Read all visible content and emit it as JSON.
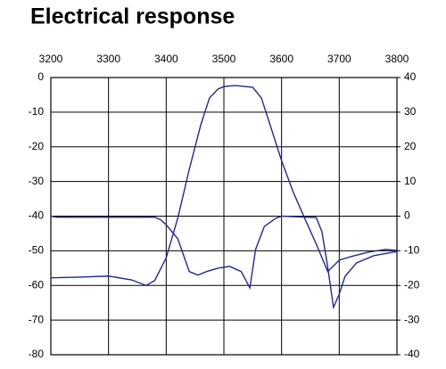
{
  "chart_data": {
    "type": "line",
    "title": "Electrical response",
    "xlim": [
      3200,
      3800
    ],
    "xticks": [
      3200,
      3300,
      3400,
      3500,
      3600,
      3700,
      3800
    ],
    "ylim": [
      -80,
      0
    ],
    "yticks": [
      0,
      -10,
      -20,
      -30,
      -40,
      -50,
      -60,
      -70,
      -80
    ],
    "y2lim": [
      -40,
      40
    ],
    "y2ticks": [
      40,
      30,
      20,
      10,
      0,
      -10,
      -20,
      -30,
      -40
    ],
    "grid": true,
    "series": [
      {
        "color": "#1f2a8c",
        "x": [
          3200,
          3250,
          3300,
          3340,
          3365,
          3380,
          3400,
          3420,
          3440,
          3460,
          3475,
          3490,
          3500,
          3520,
          3550,
          3565,
          3580,
          3600,
          3620,
          3640,
          3660,
          3680,
          3700,
          3720,
          3750,
          3780,
          3800
        ],
        "values": [
          -57.8,
          -57.6,
          -57.3,
          -58.4,
          -60,
          -58.6,
          -52,
          -40.6,
          -26.5,
          -13.6,
          -5.9,
          -3.3,
          -2.6,
          -2.3,
          -2.8,
          -5.9,
          -13.6,
          -24,
          -33,
          -40.6,
          -48,
          -56,
          -52.7,
          -51.7,
          -50.4,
          -49.6,
          -49.9
        ]
      },
      {
        "color": "#1f2a8c",
        "axis": "y2",
        "x": [
          3200,
          3210,
          3380,
          3390,
          3400,
          3420,
          3440,
          3455,
          3470,
          3490,
          3510,
          3530,
          3545,
          3555,
          3570,
          3590,
          3600,
          3660,
          3670,
          3680,
          3690,
          3700,
          3710,
          3730,
          3760,
          3800
        ],
        "values": [
          0,
          -0.3,
          -0.3,
          -1,
          -2.5,
          -6.5,
          -16,
          -17,
          -16,
          -15,
          -14.5,
          -16,
          -20.7,
          -9.6,
          -3,
          -0.6,
          0,
          -0.4,
          -4.5,
          -14.7,
          -26.3,
          -22.5,
          -17.4,
          -13.5,
          -11.4,
          -10.2
        ]
      }
    ]
  }
}
